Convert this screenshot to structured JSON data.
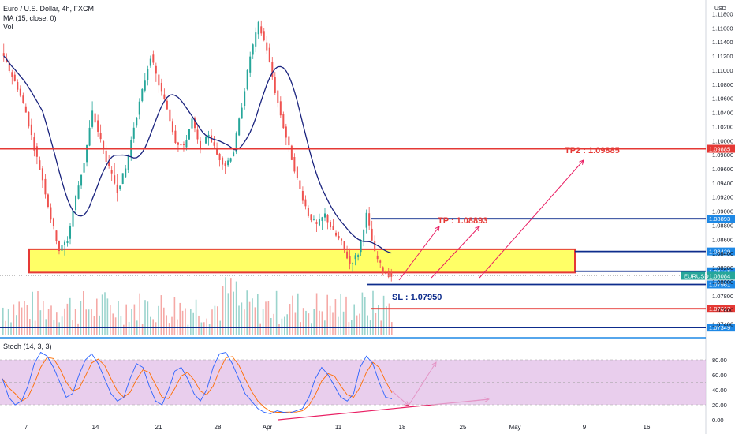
{
  "legend": {
    "symbol": "Euro / U.S. Dollar, 4h, FXCM",
    "ma": "MA (15, close, 0)",
    "vol": "Vol",
    "stoch": "Stoch (14, 3, 3)",
    "currency": "USD"
  },
  "colors": {
    "bull": "#26a69a",
    "bear": "#ef5350",
    "ma": "#1a237e",
    "resistance": "#e53935",
    "level_blue": "#0d2c8c",
    "zone_fill": "#ffff66",
    "zone_border": "#e53935",
    "stoch_band": "#e1bee7",
    "stoch_k": "#2962ff",
    "stoch_d": "#ff6d00",
    "arrow": "#e91e63",
    "price_tag": "#1e88e5"
  },
  "chart_data": {
    "type": "candlestick",
    "price_axis": {
      "ylim": [
        1.0725,
        1.1195
      ],
      "ticks": [
        "1.11800",
        "1.11600",
        "1.11400",
        "1.11200",
        "1.11000",
        "1.10800",
        "1.10600",
        "1.10400",
        "1.10200",
        "1.10000",
        "1.09800",
        "1.09600",
        "1.09400",
        "1.09200",
        "1.09000",
        "1.08800",
        "1.08600",
        "1.08400",
        "1.08200",
        "1.08000",
        "1.07800",
        "1.07600",
        "1.07400"
      ]
    },
    "date_axis": {
      "labels": [
        "7",
        "14",
        "21",
        "28",
        "Apr",
        "11",
        "18",
        "25",
        "May",
        "9",
        "16"
      ]
    },
    "candles_ohlc_summary": [
      [
        1.1125,
        1.115,
        1.109,
        1.11
      ],
      [
        1.11,
        1.111,
        1.106,
        1.1075
      ],
      [
        1.1075,
        1.1085,
        1.103,
        1.104
      ],
      [
        1.104,
        1.105,
        1.098,
        1.099
      ],
      [
        1.099,
        1.1,
        1.093,
        1.0945
      ],
      [
        1.0945,
        1.096,
        1.088,
        1.089
      ],
      [
        1.089,
        1.09,
        1.083,
        1.0845
      ],
      [
        1.0845,
        1.087,
        1.0815,
        1.086
      ],
      [
        1.086,
        1.093,
        1.085,
        1.092
      ],
      [
        1.092,
        1.098,
        1.0905,
        1.097
      ],
      [
        1.097,
        1.106,
        1.096,
        1.104
      ],
      [
        1.104,
        1.107,
        1.099,
        1.1
      ],
      [
        1.1,
        1.102,
        1.094,
        1.096
      ],
      [
        1.096,
        1.099,
        1.091,
        1.093
      ],
      [
        1.093,
        1.097,
        1.0915,
        1.096
      ],
      [
        1.096,
        1.103,
        1.095,
        1.102
      ],
      [
        1.102,
        1.108,
        1.101,
        1.107
      ],
      [
        1.107,
        1.114,
        1.106,
        1.112
      ],
      [
        1.112,
        1.113,
        1.106,
        1.108
      ],
      [
        1.108,
        1.109,
        1.103,
        1.1045
      ],
      [
        1.1045,
        1.106,
        1.099,
        1.1
      ],
      [
        1.1,
        1.101,
        1.0965,
        1.099
      ],
      [
        1.099,
        1.104,
        1.098,
        1.103
      ],
      [
        1.103,
        1.104,
        1.0975,
        1.0985
      ],
      [
        1.0985,
        1.102,
        1.097,
        1.101
      ],
      [
        1.101,
        1.1025,
        1.0975,
        1.098
      ],
      [
        1.098,
        1.099,
        1.095,
        1.0965
      ],
      [
        1.0965,
        1.099,
        1.0955,
        1.0985
      ],
      [
        1.0985,
        1.106,
        1.098,
        1.105
      ],
      [
        1.105,
        1.113,
        1.104,
        1.112
      ],
      [
        1.112,
        1.118,
        1.111,
        1.1165
      ],
      [
        1.1165,
        1.1185,
        1.112,
        1.113
      ],
      [
        1.113,
        1.114,
        1.106,
        1.107
      ],
      [
        1.107,
        1.108,
        1.101,
        1.102
      ],
      [
        1.102,
        1.103,
        1.096,
        1.0975
      ],
      [
        1.0975,
        1.099,
        1.092,
        1.093
      ],
      [
        1.093,
        1.094,
        1.0885,
        1.0895
      ],
      [
        1.0895,
        1.091,
        1.0865,
        1.088
      ],
      [
        1.088,
        1.0905,
        1.086,
        1.0895
      ],
      [
        1.0895,
        1.091,
        1.0855,
        1.087
      ],
      [
        1.087,
        1.0885,
        1.084,
        1.0855
      ],
      [
        1.0855,
        1.087,
        1.0815,
        1.0825
      ],
      [
        1.0825,
        1.085,
        1.081,
        1.084
      ],
      [
        1.084,
        1.0905,
        1.083,
        1.0895
      ],
      [
        1.0895,
        1.091,
        1.083,
        1.084
      ],
      [
        1.084,
        1.085,
        1.0806,
        1.0815
      ],
      [
        1.0815,
        1.0822,
        1.08,
        1.0808
      ]
    ],
    "annotations": {
      "tp": "TP : 1.08893",
      "tp2": "TP2 : 1.09885",
      "sl": "SL : 1.07950"
    },
    "levels": [
      {
        "label": "1.09885",
        "value": 1.09885,
        "kind": "red"
      },
      {
        "label": "1.08893",
        "value": 1.08893,
        "kind": "blue"
      },
      {
        "label": "1.08429",
        "value": 1.08429,
        "kind": "blue"
      },
      {
        "label": "1.08148",
        "value": 1.08148,
        "kind": "blue"
      },
      {
        "label": "1.08084",
        "value": 1.08084,
        "kind": "current"
      },
      {
        "label": "1.07961",
        "value": 1.07961,
        "kind": "blue"
      },
      {
        "label": "1.07617",
        "value": 1.07617,
        "kind": "red"
      },
      {
        "label": "1.07349",
        "value": 1.07349,
        "kind": "blue"
      }
    ],
    "current_tag": "EURUSD",
    "stoch_axis": {
      "ylim": [
        0,
        100
      ],
      "ticks": [
        "80.00",
        "60.00",
        "40.00",
        "20.00",
        "0.00"
      ]
    },
    "stoch_k": [
      55,
      30,
      20,
      25,
      45,
      75,
      90,
      85,
      70,
      50,
      30,
      35,
      60,
      80,
      88,
      75,
      55,
      35,
      25,
      30,
      55,
      75,
      70,
      45,
      25,
      20,
      40,
      65,
      70,
      55,
      35,
      25,
      40,
      70,
      88,
      90,
      75,
      55,
      35,
      25,
      15,
      10,
      8,
      12,
      10,
      9,
      12,
      15,
      30,
      55,
      70,
      60,
      45,
      30,
      25,
      35,
      70,
      85,
      75,
      50,
      30,
      28
    ]
  }
}
